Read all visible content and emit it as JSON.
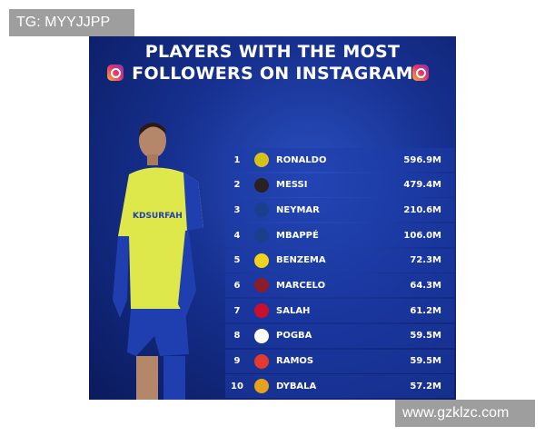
{
  "watermarks": {
    "top_left": "TG: MYYJJPP",
    "bottom_right": "www.gzklzc.com"
  },
  "poster": {
    "title_line1": "PLAYERS WITH THE MOST",
    "title_line2": "FOLLOWERS ON INSTAGRAM",
    "icons": [
      "instagram-icon",
      "instagram-icon"
    ],
    "shirt_sponsor": "KDSURFAH",
    "rows": [
      {
        "rank": "1",
        "name": "RONALDO",
        "followers": "596.9M",
        "crest": "al-nassr",
        "color": "#d4c21a"
      },
      {
        "rank": "2",
        "name": "MESSI",
        "followers": "479.4M",
        "crest": "inter-miami",
        "color": "#2a2222"
      },
      {
        "rank": "3",
        "name": "NEYMAR",
        "followers": "210.6M",
        "crest": "psg",
        "color": "#1c3f8c"
      },
      {
        "rank": "4",
        "name": "MBAPPÉ",
        "followers": "106.0M",
        "crest": "psg",
        "color": "#1c3f8c"
      },
      {
        "rank": "5",
        "name": "BENZEMA",
        "followers": "72.3M",
        "crest": "al-ittihad",
        "color": "#f2d21b"
      },
      {
        "rank": "6",
        "name": "MARCELO",
        "followers": "64.3M",
        "crest": "fluminense",
        "color": "#8b1c2a"
      },
      {
        "rank": "7",
        "name": "SALAH",
        "followers": "61.2M",
        "crest": "liverpool",
        "color": "#c8102e"
      },
      {
        "rank": "8",
        "name": "POGBA",
        "followers": "59.5M",
        "crest": "juventus",
        "color": "#ffffff"
      },
      {
        "rank": "9",
        "name": "RAMOS",
        "followers": "59.5M",
        "crest": "sevilla",
        "color": "#e23a2c"
      },
      {
        "rank": "10",
        "name": "DYBALA",
        "followers": "57.2M",
        "crest": "roma",
        "color": "#e8a21a"
      }
    ]
  }
}
